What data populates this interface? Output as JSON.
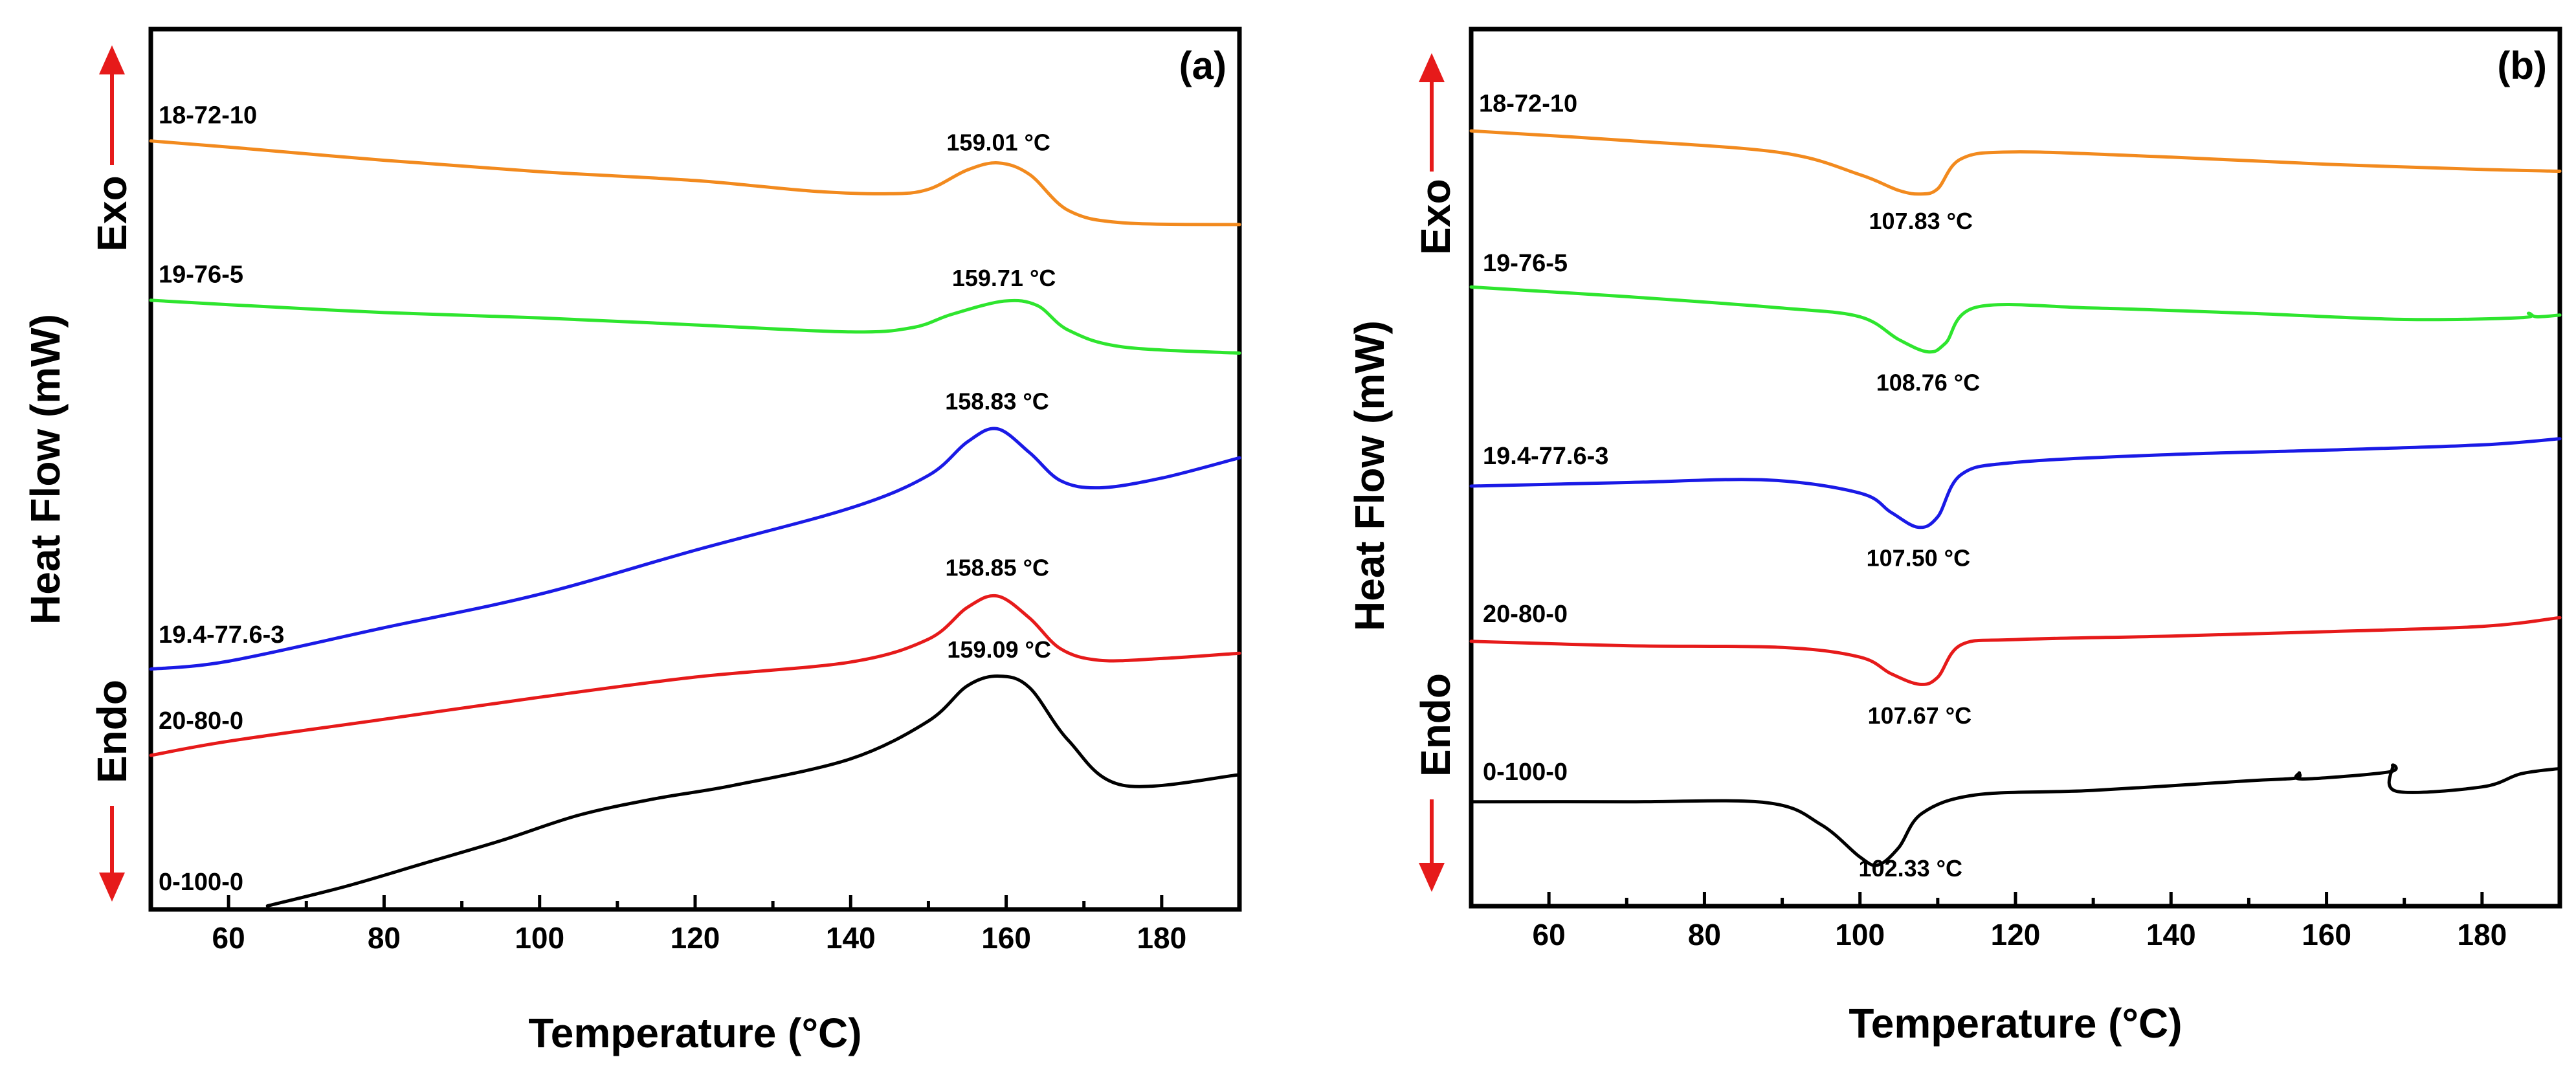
{
  "colors": {
    "orange": "#f28a1e",
    "green": "#2ee52e",
    "blue": "#1a1ae6",
    "red": "#e61a1a",
    "black": "#000000",
    "arrow": "#e61a1a"
  },
  "shared": {
    "xlabel": "Temperature (°C)",
    "ylabel": "Heat Flow (mW)",
    "exo_label": "Exo",
    "endo_label": "Endo",
    "xlim": [
      50,
      190
    ],
    "xticks": [
      60,
      80,
      100,
      120,
      140,
      160,
      180
    ]
  },
  "chart_data": [
    {
      "type": "line",
      "panel": "(a)",
      "xlabel": "Temperature (°C)",
      "ylabel": "Heat Flow (mW)",
      "xlim": [
        50,
        190
      ],
      "ylim": [
        0,
        100
      ],
      "series": [
        {
          "name": "18-72-10",
          "color": "orange",
          "points": [
            [
              50,
              87.3
            ],
            [
              60,
              86.6
            ],
            [
              80,
              85.1
            ],
            [
              100,
              83.8
            ],
            [
              120,
              82.8
            ],
            [
              135,
              81.6
            ],
            [
              145,
              81.3
            ],
            [
              150,
              81.8
            ],
            [
              155,
              84
            ],
            [
              159.01,
              84.8
            ],
            [
              163,
              83.5
            ],
            [
              168,
              79.4
            ],
            [
              175,
              78
            ],
            [
              190,
              77.8
            ]
          ],
          "peak_label": "159.01 °C",
          "peak_label_at": [
            159.01,
            86.2
          ]
        },
        {
          "name": "19-76-5",
          "color": "green",
          "points": [
            [
              50,
              69.2
            ],
            [
              60,
              68.7
            ],
            [
              80,
              67.8
            ],
            [
              100,
              67.2
            ],
            [
              120,
              66.4
            ],
            [
              140,
              65.6
            ],
            [
              148,
              66.1
            ],
            [
              153,
              67.6
            ],
            [
              159.71,
              69.1
            ],
            [
              164,
              68.6
            ],
            [
              168,
              65.8
            ],
            [
              175,
              63.9
            ],
            [
              190,
              63.2
            ]
          ],
          "peak_label": "159.71 °C",
          "peak_label_at": [
            159.71,
            70.8
          ]
        },
        {
          "name": "19.4-77.6-3",
          "color": "blue",
          "points": [
            [
              50,
              27.3
            ],
            [
              60,
              28.2
            ],
            [
              80,
              32
            ],
            [
              100,
              35.8
            ],
            [
              120,
              40.8
            ],
            [
              140,
              45.6
            ],
            [
              150,
              49.3
            ],
            [
              155,
              53.1
            ],
            [
              158.83,
              54.6
            ],
            [
              163,
              51.9
            ],
            [
              167,
              48.7
            ],
            [
              172,
              47.9
            ],
            [
              180,
              49
            ],
            [
              190,
              51.3
            ]
          ],
          "peak_label": "158.83 °C",
          "peak_label_at": [
            158.83,
            56.8
          ]
        },
        {
          "name": "20-80-0",
          "color": "red",
          "points": [
            [
              50,
              17.5
            ],
            [
              60,
              19.1
            ],
            [
              80,
              21.6
            ],
            [
              100,
              24.1
            ],
            [
              120,
              26.4
            ],
            [
              140,
              28.1
            ],
            [
              150,
              30.7
            ],
            [
              155,
              34.3
            ],
            [
              158.85,
              35.6
            ],
            [
              163,
              33.1
            ],
            [
              167,
              29.6
            ],
            [
              172,
              28.3
            ],
            [
              180,
              28.5
            ],
            [
              190,
              29.1
            ]
          ],
          "peak_label": "158.85 °C",
          "peak_label_at": [
            158.85,
            37.9
          ]
        },
        {
          "name": "0-100-0",
          "color": "black",
          "points": [
            [
              65,
              0.4
            ],
            [
              75,
              2.6
            ],
            [
              85,
              5.2
            ],
            [
              95,
              7.8
            ],
            [
              105,
              10.7
            ],
            [
              115,
              12.6
            ],
            [
              125,
              14.1
            ],
            [
              140,
              17.1
            ],
            [
              150,
              21.4
            ],
            [
              155,
              25.4
            ],
            [
              159.09,
              26.5
            ],
            [
              163,
              25.2
            ],
            [
              168,
              19.2
            ],
            [
              175,
              14.1
            ],
            [
              190,
              15.3
            ]
          ],
          "peak_label": "159.09 °C",
          "peak_label_at": [
            159.09,
            28.6
          ]
        }
      ],
      "series_labels": [
        {
          "text": "18-72-10",
          "at": [
            51,
            89.3
          ]
        },
        {
          "text": "19-76-5",
          "at": [
            51,
            71.2
          ]
        },
        {
          "text": "19.4-77.6-3",
          "at": [
            51,
            30.3
          ]
        },
        {
          "text": "20-80-0",
          "at": [
            51,
            20.5
          ]
        },
        {
          "text": "0-100-0",
          "at": [
            51,
            2.2
          ]
        }
      ]
    },
    {
      "type": "line",
      "panel": "(b)",
      "xlabel": "Temperature (°C)",
      "ylabel": "Heat Flow (mW)",
      "xlim": [
        50,
        190
      ],
      "ylim": [
        0,
        100
      ],
      "series": [
        {
          "name": "18-72-10",
          "color": "orange",
          "points": [
            [
              50,
              88.4
            ],
            [
              70,
              87.3
            ],
            [
              90,
              85.9
            ],
            [
              100,
              83.4
            ],
            [
              105,
              81.6
            ],
            [
              107.83,
              81.2
            ],
            [
              110,
              81.8
            ],
            [
              113,
              85.2
            ],
            [
              120,
              86
            ],
            [
              140,
              85.4
            ],
            [
              160,
              84.6
            ],
            [
              180,
              84
            ],
            [
              190,
              83.8
            ]
          ],
          "peak_label": "107.83 °C",
          "peak_label_at": [
            107.83,
            77.2
          ]
        },
        {
          "name": "19-76-5",
          "color": "green",
          "points": [
            [
              50,
              70.6
            ],
            [
              70,
              69.5
            ],
            [
              90,
              68.2
            ],
            [
              100,
              67.2
            ],
            [
              105,
              64.6
            ],
            [
              108.76,
              63.2
            ],
            [
              111,
              64.2
            ],
            [
              115,
              68.3
            ],
            [
              130,
              68.2
            ],
            [
              150,
              67.6
            ],
            [
              170,
              66.9
            ],
            [
              185,
              67.1
            ],
            [
              186,
              67.6
            ],
            [
              187,
              67.2
            ],
            [
              190,
              67.4
            ]
          ],
          "peak_label": "108.76 °C",
          "peak_label_at": [
            108.76,
            58.8
          ]
        },
        {
          "name": "19.4-77.6-3",
          "color": "blue",
          "points": [
            [
              50,
              47.9
            ],
            [
              70,
              48.3
            ],
            [
              88,
              48.6
            ],
            [
              100,
              47.1
            ],
            [
              104,
              44.9
            ],
            [
              107.5,
              43.2
            ],
            [
              110,
              44.4
            ],
            [
              113,
              49.2
            ],
            [
              120,
              50.6
            ],
            [
              140,
              51.5
            ],
            [
              160,
              52
            ],
            [
              180,
              52.6
            ],
            [
              190,
              53.3
            ]
          ],
          "peak_label": "107.50 °C",
          "peak_label_at": [
            107.5,
            38.8
          ]
        },
        {
          "name": "20-80-0",
          "color": "red",
          "points": [
            [
              50,
              30.2
            ],
            [
              70,
              29.7
            ],
            [
              90,
              29.5
            ],
            [
              100,
              28.4
            ],
            [
              104,
              26.5
            ],
            [
              107.67,
              25.3
            ],
            [
              110,
              26.1
            ],
            [
              113,
              29.8
            ],
            [
              120,
              30.4
            ],
            [
              140,
              30.8
            ],
            [
              160,
              31.3
            ],
            [
              180,
              31.9
            ],
            [
              190,
              32.9
            ]
          ],
          "peak_label": "107.67 °C",
          "peak_label_at": [
            107.67,
            20.8
          ]
        },
        {
          "name": "0-100-0",
          "color": "black",
          "points": [
            [
              50,
              11.9
            ],
            [
              70,
              11.9
            ],
            [
              88,
              11.8
            ],
            [
              95,
              9.3
            ],
            [
              100,
              5.6
            ],
            [
              102.33,
              4.7
            ],
            [
              105,
              6.7
            ],
            [
              108,
              10.6
            ],
            [
              115,
              12.7
            ],
            [
              130,
              13.2
            ],
            [
              150,
              14.3
            ],
            [
              156,
              14.6
            ],
            [
              156.5,
              15.2
            ],
            [
              157,
              14.5
            ],
            [
              168,
              15.3
            ],
            [
              168.5,
              16
            ],
            [
              169,
              13.1
            ],
            [
              180,
              13.6
            ],
            [
              185,
              15.1
            ],
            [
              190,
              15.7
            ]
          ],
          "peak_label": "102.33 °C",
          "peak_label_at": [
            106.5,
            3.4
          ]
        }
      ],
      "series_labels": [
        {
          "text": "18-72-10",
          "at": [
            51,
            90.6
          ]
        },
        {
          "text": "19-76-5",
          "at": [
            51.5,
            72.4
          ]
        },
        {
          "text": "19.4-77.6-3",
          "at": [
            51.5,
            50.4
          ]
        },
        {
          "text": "20-80-0",
          "at": [
            51.5,
            32.4
          ]
        },
        {
          "text": "0-100-0",
          "at": [
            51.5,
            14.4
          ]
        }
      ]
    }
  ]
}
